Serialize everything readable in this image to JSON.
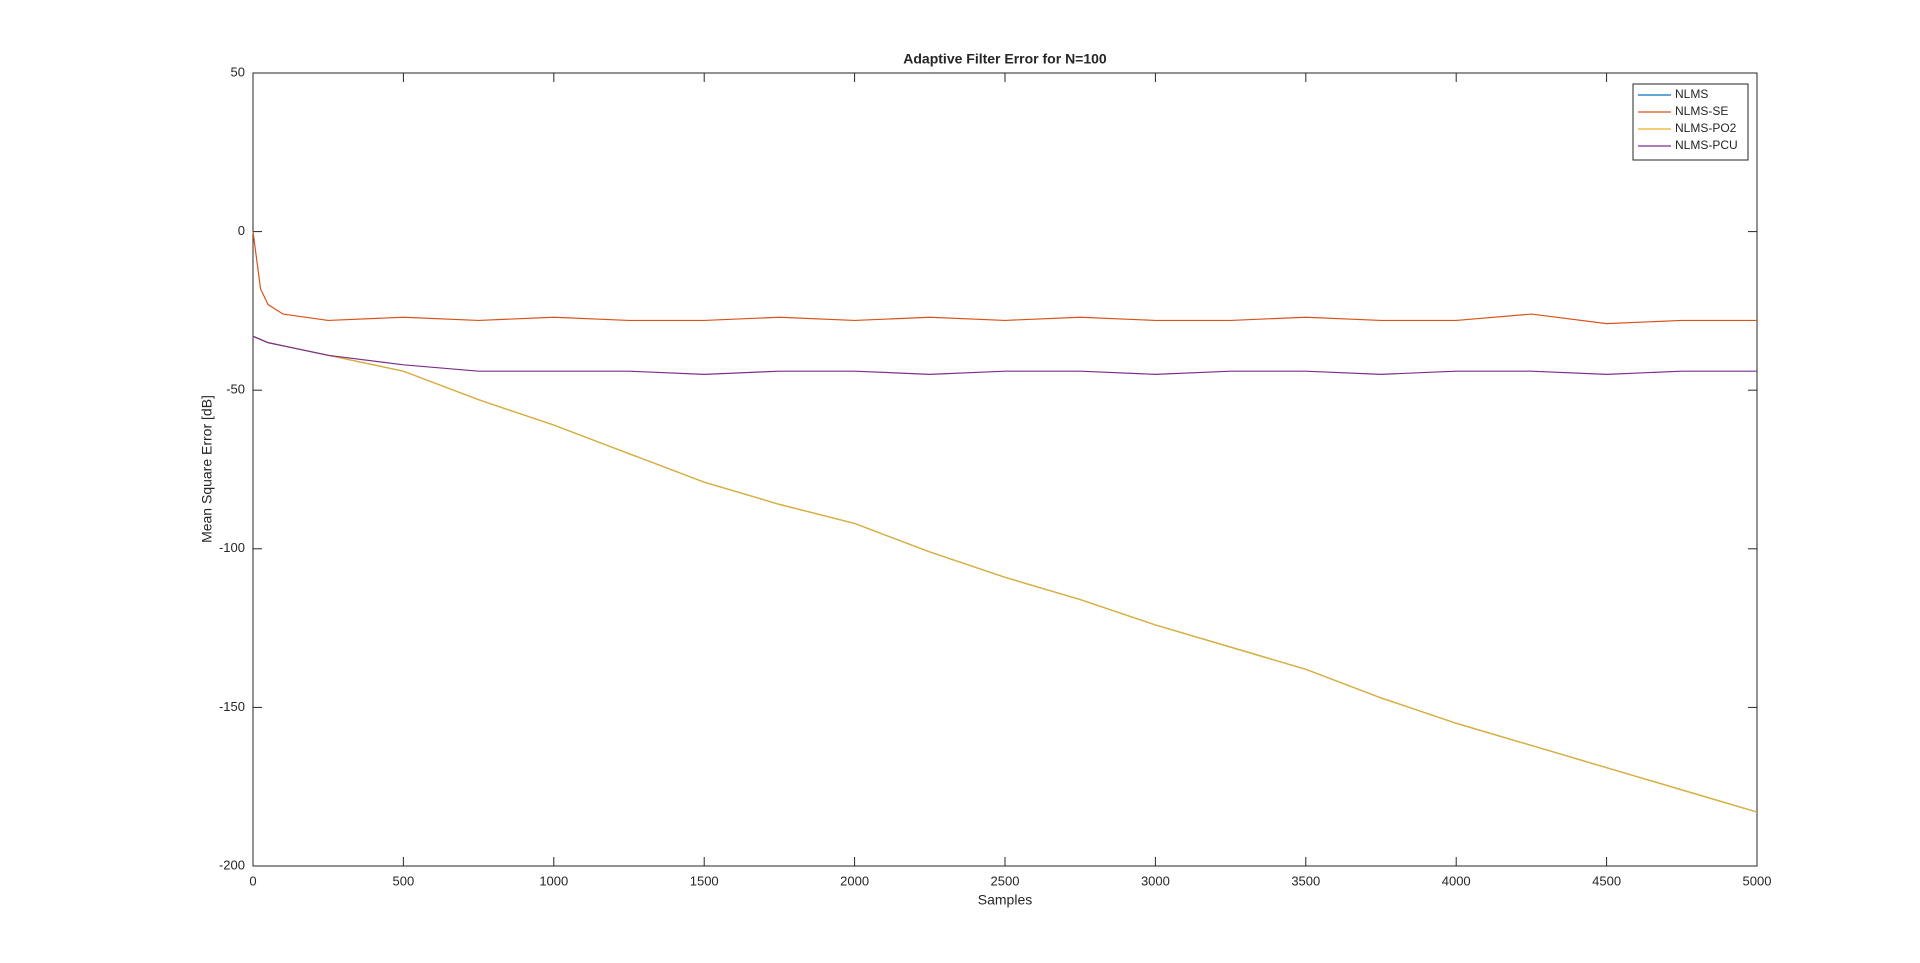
{
  "chart_data": {
    "type": "line",
    "title": "Adaptive Filter Error for N=100",
    "x_label": "Samples",
    "y_label": "Mean Square Error [dB]",
    "x": [
      0,
      25,
      50,
      100,
      250,
      500,
      750,
      1000,
      1250,
      1500,
      1750,
      2000,
      2250,
      2500,
      2750,
      3000,
      3250,
      3500,
      3750,
      4000,
      4250,
      4500,
      4750,
      5000
    ],
    "series": [
      {
        "name": "NLMS",
        "color": "#0072bd",
        "values": [
          -33,
          -34,
          -35,
          -36,
          -39,
          -44,
          -53,
          -61,
          -70,
          -79,
          -86,
          -92,
          -101,
          -109,
          -116,
          -124,
          -131,
          -138,
          -147,
          -155,
          -162,
          -169,
          -176,
          -183
        ]
      },
      {
        "name": "NLMS-SE",
        "color": "#d95319",
        "values": [
          0,
          -18,
          -23,
          -26,
          -28,
          -27,
          -28,
          -27,
          -28,
          -28,
          -27,
          -28,
          -27,
          -28,
          -27,
          -28,
          -28,
          -27,
          -28,
          -28,
          -26,
          -29,
          -28,
          -28
        ]
      },
      {
        "name": "NLMS-PO2",
        "color": "#edb120",
        "values": [
          -33,
          -34,
          -35,
          -36,
          -39,
          -44,
          -53,
          -61,
          -70,
          -79,
          -86,
          -92,
          -101,
          -109,
          -116,
          -124,
          -131,
          -138,
          -147,
          -155,
          -162,
          -169,
          -176,
          -183
        ]
      },
      {
        "name": "NLMS-PCU",
        "color": "#7e2f8e",
        "values": [
          -33,
          -34,
          -35,
          -36,
          -39,
          -42,
          -44,
          -44,
          -44,
          -45,
          -44,
          -44,
          -45,
          -44,
          -44,
          -45,
          -44,
          -44,
          -45,
          -44,
          -44,
          -45,
          -44,
          -44
        ]
      }
    ],
    "xlim": [
      0,
      5000
    ],
    "xticks": [
      0,
      500,
      1000,
      1500,
      2000,
      2500,
      3000,
      3500,
      4000,
      4500,
      5000
    ],
    "ylim": [
      -200,
      50
    ],
    "yticks": [
      -200,
      -150,
      -100,
      -50,
      0,
      50
    ],
    "grid": false,
    "legend": "top-right"
  }
}
